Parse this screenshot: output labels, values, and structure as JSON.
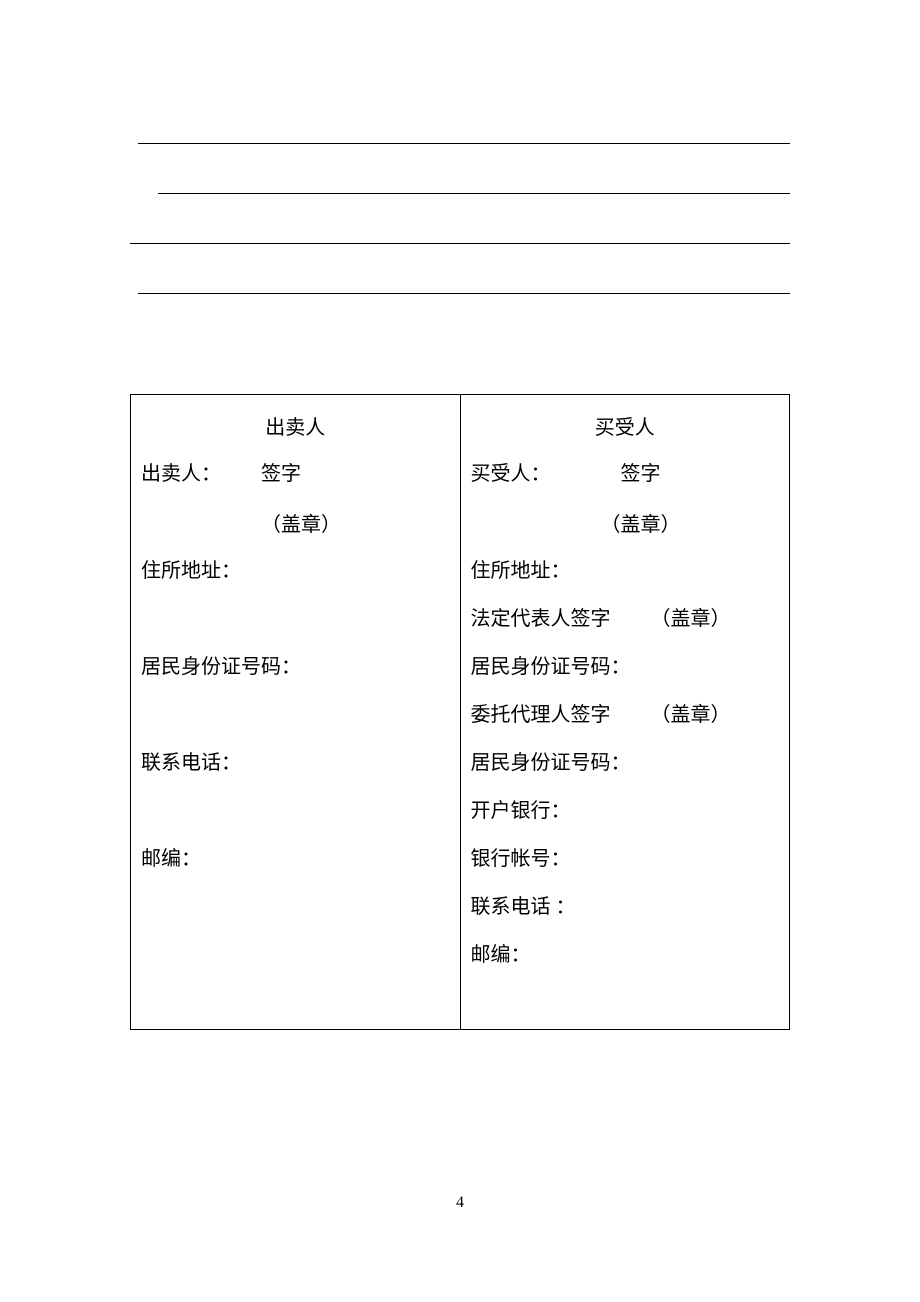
{
  "seller": {
    "header": "出卖人",
    "name_label": "出卖人：",
    "sign_label": "签字",
    "seal_label": "（盖章）",
    "address_label": "住所地址：",
    "id_label": "居民身份证号码：",
    "phone_label": "联系电话：",
    "zip_label": "邮编："
  },
  "buyer": {
    "header": "买受人",
    "name_label": "买受人：",
    "sign_label": "签字",
    "seal_label": "（盖章）",
    "address_label": "住所地址：",
    "legal_rep_label": "法定代表人签字",
    "legal_rep_seal": "（盖章）",
    "id_label": "居民身份证号码：",
    "agent_label": "委托代理人签字",
    "agent_seal": "（盖章）",
    "id_label2": "居民身份证号码：",
    "bank_label": "开户银行：",
    "account_label": "银行帐号：",
    "phone_label": "联系电话 ：",
    "zip_label": "邮编："
  },
  "page_number": "4"
}
